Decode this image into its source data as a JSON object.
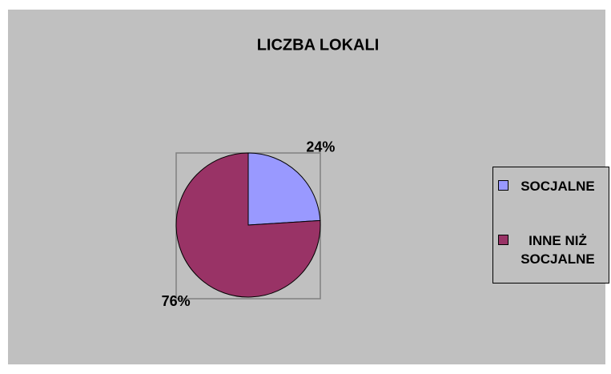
{
  "chart_data": {
    "type": "pie",
    "title": "LICZBA LOKALI",
    "categories": [
      "SOCJALNE",
      "INNE NIŻ SOCJALNE"
    ],
    "values": [
      24,
      76
    ],
    "value_labels": [
      "24%",
      "76%"
    ],
    "colors": [
      "#9999ff",
      "#993366"
    ],
    "legend": "right"
  }
}
